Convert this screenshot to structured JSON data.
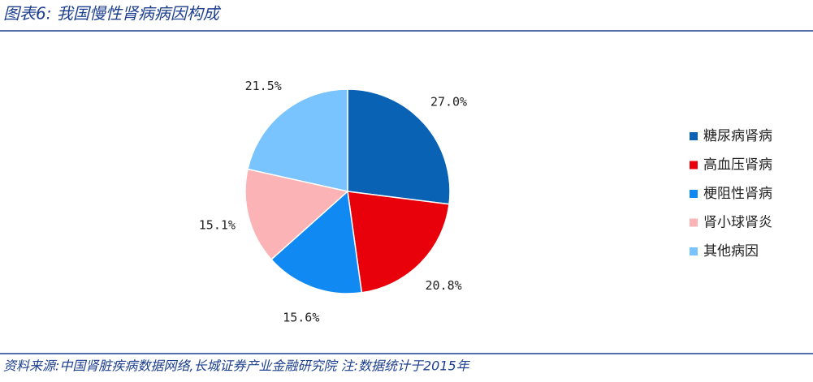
{
  "chart_data": {
    "type": "pie",
    "title": "图表6:  我国慢性肾病病因构成",
    "categories": [
      "糖尿病肾病",
      "高血压肾病",
      "梗阻性肾病",
      "肾小球肾炎",
      "其他病因"
    ],
    "values": [
      27.0,
      20.8,
      15.6,
      15.1,
      21.5
    ],
    "value_labels": [
      "27.0%",
      "20.8%",
      "15.6%",
      "15.1%",
      "21.5%"
    ],
    "colors": [
      "#0a62b4",
      "#e8000b",
      "#1189f2",
      "#fbb3b5",
      "#79c3ff"
    ],
    "legend": "right",
    "source": "资料来源:中国肾脏疾病数据网络,长城证券产业金融研究院 注:数据统计于2015年"
  }
}
